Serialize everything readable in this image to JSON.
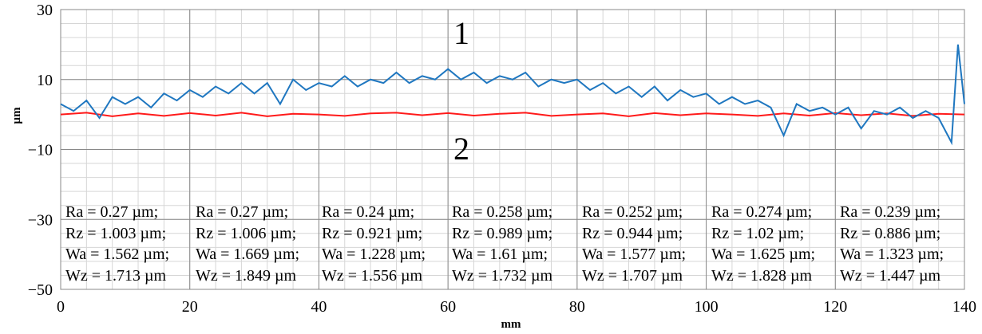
{
  "chart_data": {
    "type": "line",
    "xlabel": "mm",
    "ylabel": "µm",
    "xlim": [
      0,
      140
    ],
    "ylim": [
      -50,
      30
    ],
    "xticks": [
      0,
      20,
      40,
      60,
      80,
      100,
      120,
      140
    ],
    "yticks": [
      -50,
      -30,
      -10,
      10,
      30
    ],
    "grid": true,
    "annotations": [
      "1",
      "2"
    ],
    "series": [
      {
        "label": "1",
        "color": "#1f77c0",
        "x": [
          0,
          2,
          4,
          6,
          8,
          10,
          12,
          14,
          16,
          18,
          20,
          22,
          24,
          26,
          28,
          30,
          32,
          34,
          36,
          38,
          40,
          42,
          44,
          46,
          48,
          50,
          52,
          54,
          56,
          58,
          60,
          62,
          64,
          66,
          68,
          70,
          72,
          74,
          76,
          78,
          80,
          82,
          84,
          86,
          88,
          90,
          92,
          94,
          96,
          98,
          100,
          102,
          104,
          106,
          108,
          110,
          112,
          114,
          116,
          118,
          120,
          122,
          124,
          126,
          128,
          130,
          132,
          134,
          136,
          138,
          139,
          140
        ],
        "y": [
          3,
          1,
          4,
          -1,
          5,
          3,
          5,
          2,
          6,
          4,
          7,
          5,
          8,
          6,
          9,
          6,
          9,
          3,
          10,
          7,
          9,
          8,
          11,
          8,
          10,
          9,
          12,
          9,
          11,
          10,
          13,
          10,
          12,
          9,
          11,
          10,
          12,
          8,
          10,
          9,
          10,
          7,
          9,
          6,
          8,
          5,
          8,
          4,
          7,
          5,
          6,
          3,
          5,
          3,
          4,
          2,
          -6,
          3,
          1,
          2,
          0,
          2,
          -4,
          1,
          0,
          2,
          -1,
          1,
          -1,
          -8,
          20,
          3
        ]
      },
      {
        "label": "2",
        "color": "#ff1a1a",
        "x": [
          0,
          4,
          8,
          12,
          16,
          20,
          24,
          28,
          32,
          36,
          40,
          44,
          48,
          52,
          56,
          60,
          64,
          68,
          72,
          76,
          80,
          84,
          88,
          92,
          96,
          100,
          104,
          108,
          112,
          116,
          120,
          124,
          128,
          132,
          136,
          140
        ],
        "y": [
          0,
          0.5,
          -0.5,
          0.3,
          -0.4,
          0.4,
          -0.3,
          0.5,
          -0.5,
          0.2,
          0,
          -0.4,
          0.3,
          0.5,
          -0.2,
          0.4,
          -0.3,
          0.2,
          0.5,
          -0.4,
          0,
          0.3,
          -0.5,
          0.4,
          -0.2,
          0.3,
          0,
          -0.4,
          0.3,
          -0.3,
          0.4,
          -0.2,
          0.3,
          -0.4,
          0.2,
          0
        ]
      }
    ],
    "table": [
      [
        "Ra = 0.27 µm;",
        "Ra = 0.27 µm;",
        "Ra = 0.24 µm;",
        "Ra = 0.258 µm;",
        "Ra = 0.252 µm;",
        "Ra = 0.274 µm;",
        "Ra = 0.239 µm;"
      ],
      [
        "Rz = 1.003 µm;",
        "Rz = 1.006 µm;",
        "Rz = 0.921 µm;",
        "Rz = 0.989 µm;",
        "Rz = 0.944 µm;",
        "Rz = 1.02 µm;",
        "Rz = 0.886 µm;"
      ],
      [
        "Wa = 1.562 µm;",
        "Wa = 1.669 µm;",
        "Wa = 1.228 µm;",
        "Wa = 1.61 µm;",
        "Wa = 1.577 µm;",
        "Wa = 1.625 µm;",
        "Wa = 1.323 µm;"
      ],
      [
        "Wz = 1.713 µm",
        "Wz = 1.849 µm",
        "Wz = 1.556 µm",
        "Wz = 1.732 µm",
        "Wz = 1.707 µm",
        "Wz = 1.828 µm",
        "Wz = 1.447 µm"
      ]
    ]
  }
}
